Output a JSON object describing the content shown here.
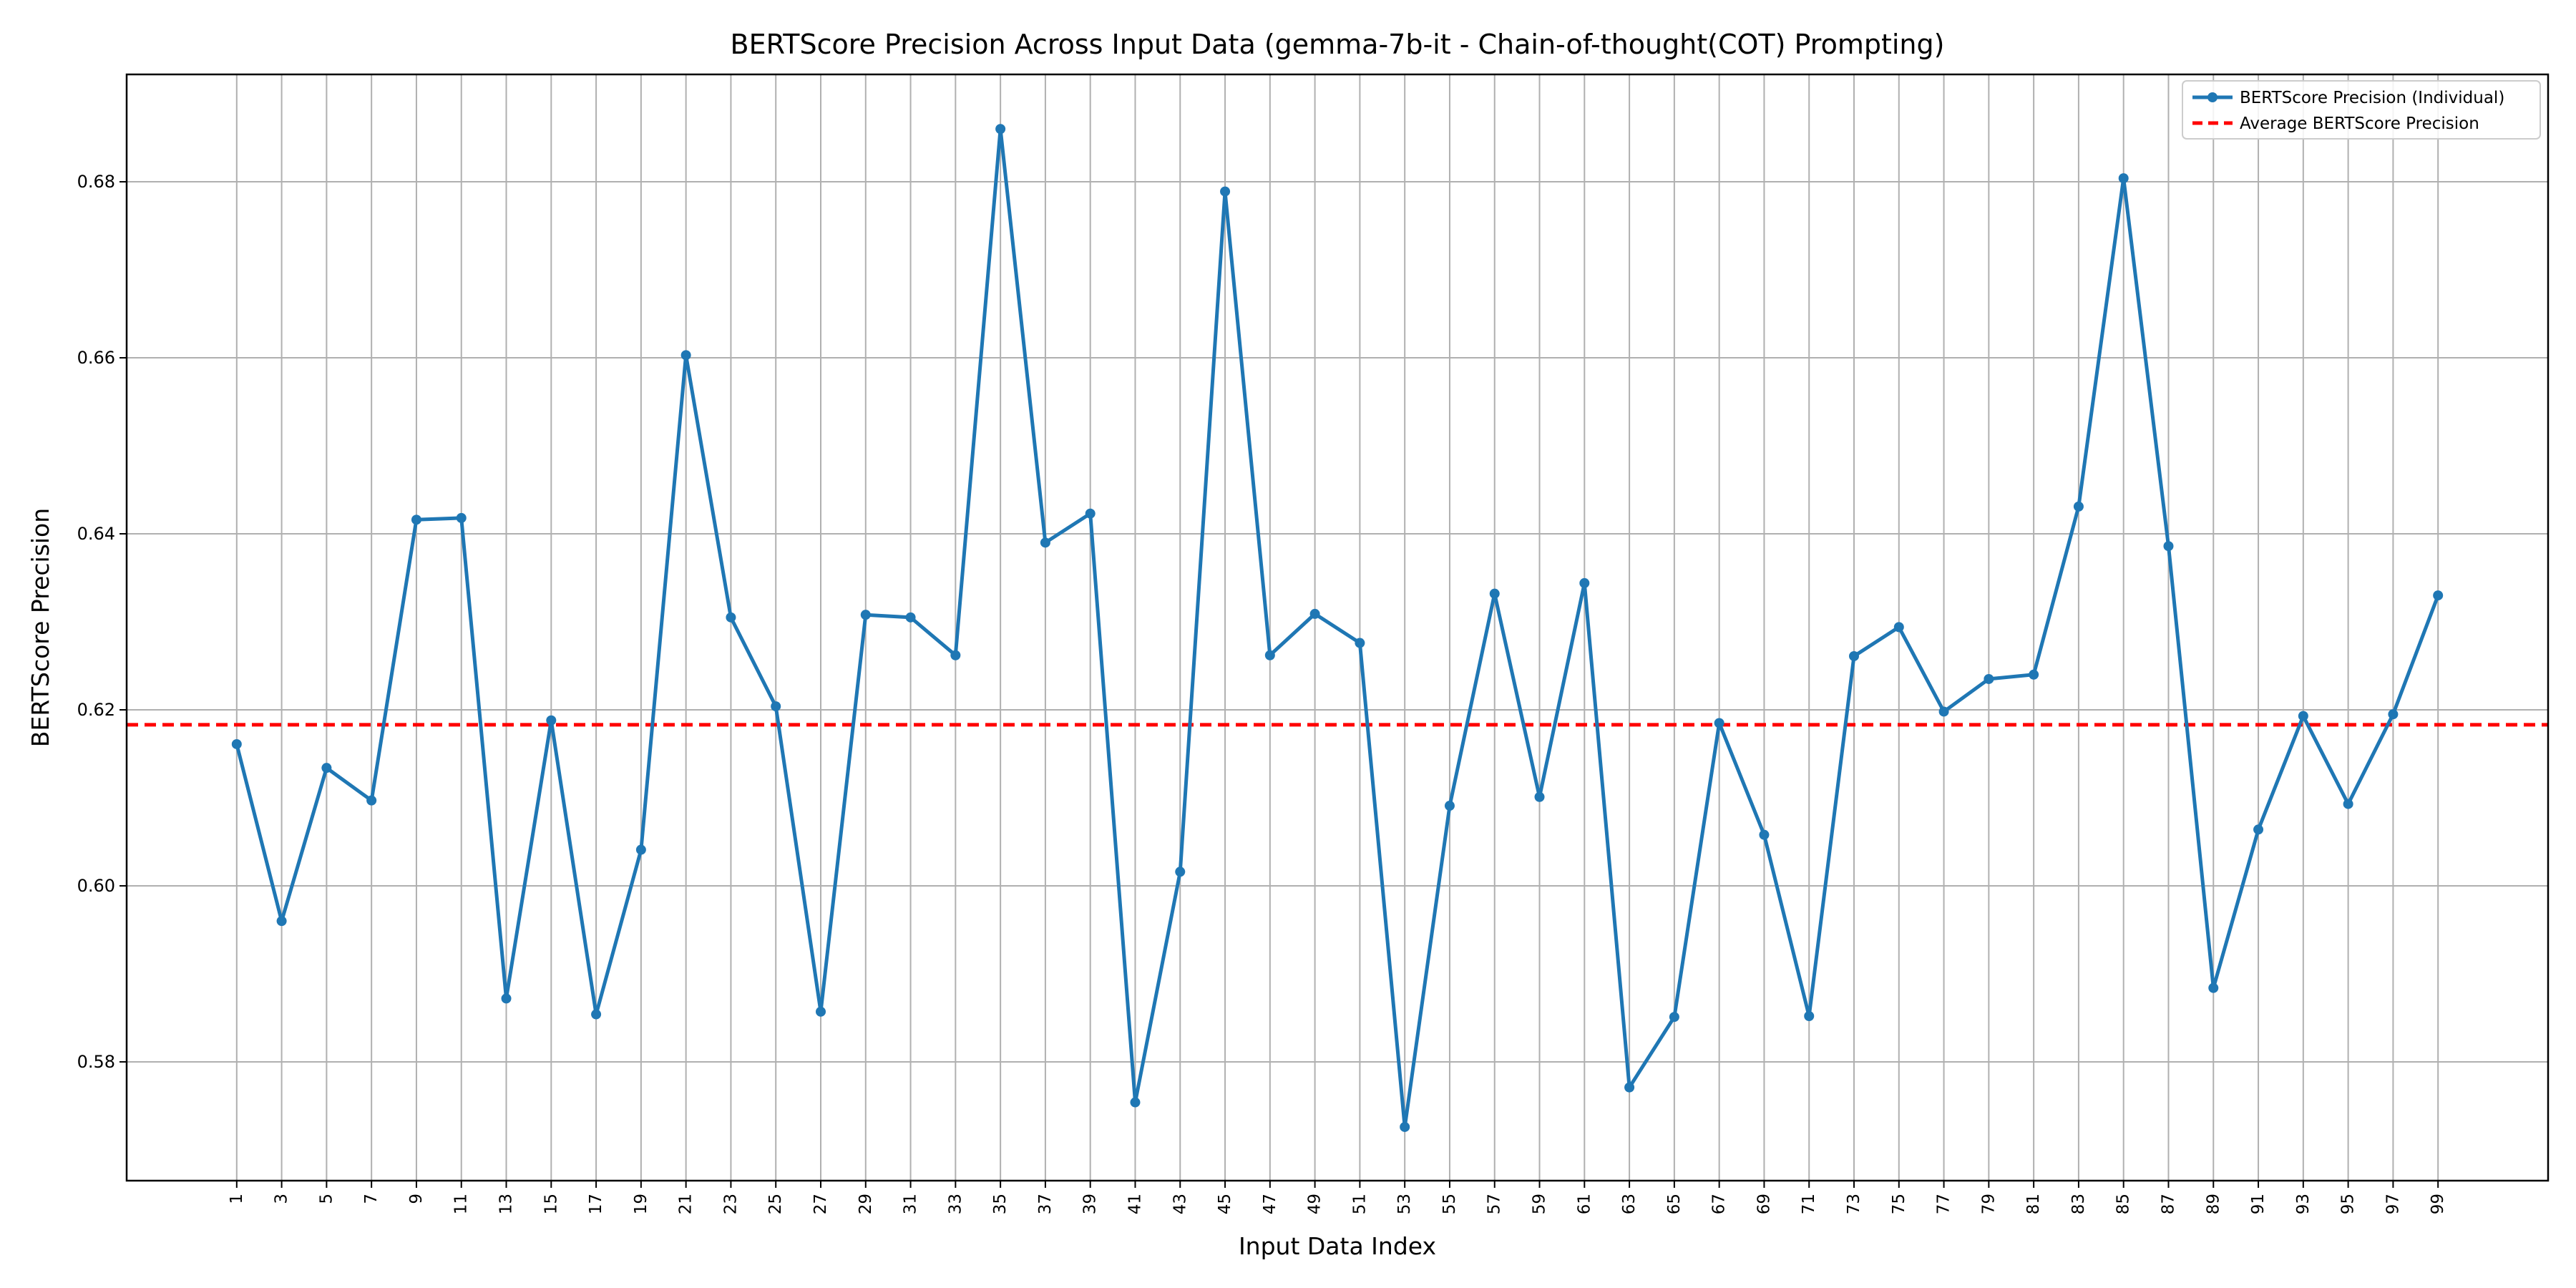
{
  "chart_data": {
    "type": "line",
    "title": "BERTScore Precision Across Input Data (gemma-7b-it - Chain-of-thought(COT) Prompting)",
    "xlabel": "Input Data Index",
    "ylabel": "BERTScore Precision",
    "x": [
      1,
      3,
      5,
      7,
      9,
      11,
      13,
      15,
      17,
      19,
      21,
      23,
      25,
      27,
      29,
      31,
      33,
      35,
      37,
      39,
      41,
      43,
      45,
      47,
      49,
      51,
      53,
      55,
      57,
      59,
      61,
      63,
      65,
      67,
      69,
      71,
      73,
      75,
      77,
      79,
      81,
      83,
      85,
      87,
      89,
      91,
      93,
      95,
      97,
      99
    ],
    "xlim": [
      -3.9,
      103.9
    ],
    "ylim": [
      0.5665,
      0.6922
    ],
    "yticks": [
      0.58,
      0.6,
      0.62,
      0.64,
      0.66,
      0.68
    ],
    "ytick_labels": [
      "0.58",
      "0.60",
      "0.62",
      "0.64",
      "0.66",
      "0.68"
    ],
    "grid": true,
    "legend_position": "top-right",
    "series": [
      {
        "name": "BERTScore Precision (Individual)",
        "color": "#1f77b4",
        "style": "solid-with-markers",
        "values": [
          0.6161,
          0.596,
          0.6134,
          0.6097,
          0.6416,
          0.6418,
          0.5872,
          0.6188,
          0.5854,
          0.6041,
          0.6603,
          0.6305,
          0.6204,
          0.5857,
          0.6308,
          0.6305,
          0.6262,
          0.686,
          0.639,
          0.6423,
          0.5754,
          0.6016,
          0.6789,
          0.6262,
          0.6309,
          0.6276,
          0.5726,
          0.6091,
          0.6332,
          0.6101,
          0.6344,
          0.5771,
          0.5851,
          0.6185,
          0.6058,
          0.5852,
          0.6261,
          0.6294,
          0.6198,
          0.6235,
          0.624,
          0.6431,
          0.6804,
          0.6386,
          0.5884,
          0.6064,
          0.6193,
          0.6093,
          0.6195,
          0.633
        ]
      },
      {
        "name": "Average BERTScore Precision",
        "color": "#ff0000",
        "style": "dashed",
        "value": 0.6183
      }
    ]
  }
}
